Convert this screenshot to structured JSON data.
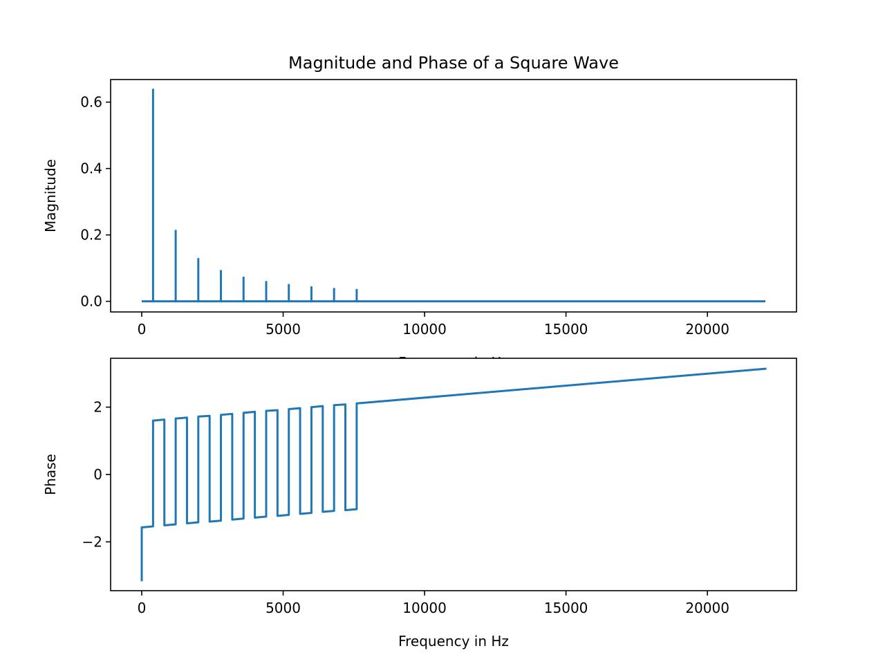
{
  "chart_data": [
    {
      "type": "line",
      "title": "Magnitude and Phase of a Square Wave",
      "xlabel": "Frequency in Hz",
      "ylabel": "Magnitude",
      "xlim": [
        -1100,
        23150
      ],
      "ylim": [
        -0.032,
        0.668
      ],
      "xticks": [
        0,
        5000,
        10000,
        15000,
        20000
      ],
      "xtick_labels": [
        "0",
        "5000",
        "10000",
        "15000",
        "20000"
      ],
      "yticks": [
        0.0,
        0.2,
        0.4,
        0.6
      ],
      "ytick_labels": [
        "0.0",
        "0.2",
        "0.4",
        "0.6"
      ],
      "grid": false,
      "color": "#1f77b4",
      "baseline": {
        "x_start": 0,
        "x_end": 22050,
        "y": 0
      },
      "series": [
        {
          "x": [
            400,
            1200,
            2000,
            2800,
            3600,
            4400,
            5200,
            6000,
            6800,
            7600
          ],
          "y": [
            0.637,
            0.212,
            0.127,
            0.091,
            0.071,
            0.058,
            0.049,
            0.042,
            0.037,
            0.034
          ]
        }
      ]
    },
    {
      "type": "line",
      "title": "",
      "xlabel": "Frequency in Hz",
      "ylabel": "Phase",
      "xlim": [
        -1100,
        23150
      ],
      "ylim": [
        -3.45,
        3.45
      ],
      "xticks": [
        0,
        5000,
        10000,
        15000,
        20000
      ],
      "xtick_labels": [
        "0",
        "5000",
        "10000",
        "15000",
        "20000"
      ],
      "yticks": [
        -2,
        0,
        2
      ],
      "ytick_labels": [
        "−2",
        "0",
        "2"
      ],
      "grid": false,
      "color": "#1f77b4",
      "series": [
        {
          "x": [
            0,
            0,
            400,
            400,
            800,
            800,
            1200,
            1200,
            1600,
            1600,
            2000,
            2000,
            2400,
            2400,
            2800,
            2800,
            3200,
            3200,
            3600,
            3600,
            4000,
            4000,
            4400,
            4400,
            4800,
            4800,
            5200,
            5200,
            5600,
            5600,
            6000,
            6000,
            6400,
            6400,
            6800,
            6800,
            7200,
            7200,
            7600,
            7600,
            22050
          ],
          "y": [
            -3.14,
            -1.57,
            -1.54,
            1.6,
            1.63,
            -1.51,
            -1.48,
            1.66,
            1.69,
            -1.45,
            -1.42,
            1.72,
            1.74,
            -1.4,
            -1.37,
            1.77,
            1.8,
            -1.34,
            -1.31,
            1.83,
            1.86,
            -1.28,
            -1.25,
            1.89,
            1.91,
            -1.23,
            -1.2,
            1.94,
            1.97,
            -1.17,
            -1.14,
            2.0,
            2.03,
            -1.11,
            -1.08,
            2.06,
            2.08,
            -1.06,
            -1.03,
            2.11,
            3.14
          ]
        }
      ]
    }
  ]
}
